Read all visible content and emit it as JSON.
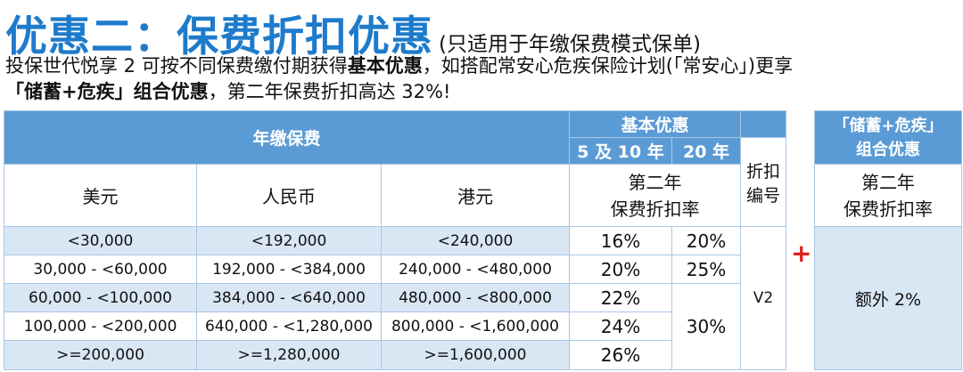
{
  "header": {
    "title": "优惠二：保费折扣优惠",
    "subtitle": "(只适用于年缴保费模式保单)"
  },
  "intro": {
    "line1_a": "投保世代悦享 2 可按不同保费缴付期获得",
    "line1_bold": "基本优惠",
    "line1_b": "，如搭配常安心危疾保险计划(「常安心」)更享",
    "line2_bold": "「储蓄+危疾」组合优惠",
    "line2_b": "，第二年保费折扣高达 32%!"
  },
  "table": {
    "annual_premium_header": "年缴保费",
    "basic_offer_header": "基本优惠",
    "term_5_10": "5 及 10 年",
    "term_20": "20 年",
    "code_header": "折扣\n编号",
    "currency_usd": "美元",
    "currency_rmb": "人民币",
    "currency_hkd": "港元",
    "second_year_rate": "第二年\n保费折扣率",
    "code_value": "V2",
    "rows": [
      {
        "usd": "<30,000",
        "rmb": "<192,000",
        "hkd": "<240,000",
        "rate_5_10": "16%"
      },
      {
        "usd": "30,000 - <60,000",
        "rmb": "192,000 - <384,000",
        "hkd": "240,000 - <480,000",
        "rate_5_10": "20%"
      },
      {
        "usd": "60,000 - <100,000",
        "rmb": "384,000 - <640,000",
        "hkd": "480,000 - <800,000",
        "rate_5_10": "22%"
      },
      {
        "usd": "100,000 - <200,000",
        "rmb": "640,000 - <1,280,000",
        "hkd": "800,000 - <1,600,000",
        "rate_5_10": "24%"
      },
      {
        "usd": ">=200,000",
        "rmb": ">=1,280,000",
        "hkd": ">=1,600,000",
        "rate_5_10": "26%"
      }
    ],
    "rate_20_a": "20%",
    "rate_20_b": "25%",
    "rate_20_c": "30%"
  },
  "plus_sign": "+",
  "combo": {
    "header": "「储蓄+危疾」\n组合优惠",
    "rate_header": "第二年\n保费折扣率",
    "value": "额外 2%"
  }
}
